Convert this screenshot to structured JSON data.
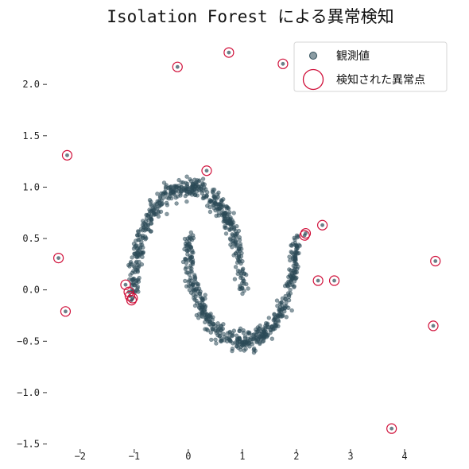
{
  "chart_data": {
    "type": "scatter",
    "title": "Isolation Forest による異常検知",
    "xlabel": "",
    "ylabel": "",
    "xlim": [
      -2.6,
      4.75
    ],
    "ylim": [
      -1.55,
      2.45
    ],
    "xticks": [
      "−2",
      "−1",
      "0",
      "1",
      "2",
      "3",
      "4"
    ],
    "xtick_values": [
      -2,
      -1,
      0,
      1,
      2,
      3,
      4
    ],
    "yticks": [
      "2.0",
      "1.5",
      "1.0",
      "0.5",
      "0.0",
      "−0.5",
      "−1.0",
      "−1.5"
    ],
    "ytick_values": [
      2.0,
      1.5,
      1.0,
      0.5,
      0.0,
      -0.5,
      -1.0,
      -1.5
    ],
    "grid": false,
    "legend": {
      "position": "top-right"
    },
    "series": [
      {
        "name": "観測値",
        "marker": "filled-circle",
        "color": "#2c4a57",
        "shape": "two-moons",
        "count": 1000,
        "noise": 0.05
      },
      {
        "name": "検知された異常点",
        "marker": "open-circle",
        "color": "#d0103a",
        "points": [
          [
            -2.24,
            1.31
          ],
          [
            -0.2,
            2.17
          ],
          [
            0.75,
            2.31
          ],
          [
            1.75,
            2.2
          ],
          [
            -2.4,
            0.31
          ],
          [
            -2.27,
            -0.21
          ],
          [
            0.34,
            1.16
          ],
          [
            2.48,
            0.63
          ],
          [
            2.15,
            0.53
          ],
          [
            2.17,
            0.55
          ],
          [
            2.4,
            0.09
          ],
          [
            2.7,
            0.09
          ],
          [
            4.57,
            0.28
          ],
          [
            4.53,
            -0.35
          ],
          [
            3.76,
            -1.35
          ],
          [
            -1.16,
            0.05
          ],
          [
            -1.1,
            -0.02
          ],
          [
            -1.08,
            -0.06
          ],
          [
            -1.03,
            -0.08
          ],
          [
            -1.05,
            -0.1
          ]
        ]
      }
    ]
  }
}
